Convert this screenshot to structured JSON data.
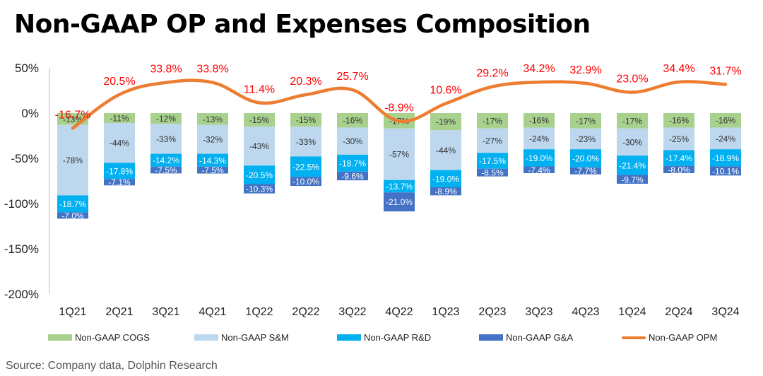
{
  "title": "Non-GAAP OP and Expenses Composition",
  "source": "Source: Company data, Dolphin Research",
  "chart_data": {
    "type": "bar",
    "stacked": true,
    "categories": [
      "1Q21",
      "2Q21",
      "3Q21",
      "4Q21",
      "1Q22",
      "2Q22",
      "3Q22",
      "4Q22",
      "1Q23",
      "2Q23",
      "3Q23",
      "4Q23",
      "1Q24",
      "2Q24",
      "3Q24"
    ],
    "ylim": [
      -200,
      50
    ],
    "yticks": [
      50,
      0,
      -50,
      -100,
      -150,
      -200
    ],
    "ytick_labels": [
      "50%",
      "0%",
      "-50%",
      "-100%",
      "-150%",
      "-200%"
    ],
    "series": [
      {
        "name": "Non-GAAP COGS",
        "color": "#a9d18e",
        "values": [
          -13,
          -11,
          -12,
          -13,
          -15,
          -15,
          -16,
          -17,
          -19,
          -17,
          -16,
          -17,
          -17,
          -16,
          -16
        ],
        "labels": [
          "-13%",
          "-11%",
          "-12%",
          "-13%",
          "-15%",
          "-15%",
          "-16%",
          "-17%",
          "-19%",
          "-17%",
          "-16%",
          "-17%",
          "-17%",
          "-16%",
          "-16%"
        ]
      },
      {
        "name": "Non-GAAP S&M",
        "color": "#bdd7ee",
        "values": [
          -78,
          -44,
          -33,
          -32,
          -43,
          -33,
          -30,
          -57,
          -44,
          -27,
          -24,
          -23,
          -30,
          -25,
          -24
        ],
        "labels": [
          "-78%",
          "-44%",
          "-33%",
          "-32%",
          "-43%",
          "-33%",
          "-30%",
          "-57%",
          "-44%",
          "-27%",
          "-24%",
          "-23%",
          "-30%",
          "-25%",
          "-24%"
        ]
      },
      {
        "name": "Non-GAAP R&D",
        "color": "#00b0f0",
        "values": [
          -18.7,
          -17.8,
          -14.2,
          -14.3,
          -20.5,
          -22.5,
          -18.7,
          -13.7,
          -19.0,
          -17.5,
          -19.0,
          -20.0,
          -21.4,
          -17.4,
          -18.9
        ],
        "labels": [
          "-18.7%",
          "-17.8%",
          "-14.2%",
          "-14.3%",
          "-20.5%",
          "-22.5%",
          "-18.7%",
          "-13.7%",
          "-19.0%",
          "-17.5%",
          "-19.0%",
          "-20.0%",
          "-21.4%",
          "-17.4%",
          "-18.9%"
        ]
      },
      {
        "name": "Non-GAAP G&A",
        "color": "#4472c4",
        "values": [
          -7.0,
          -7.1,
          -7.5,
          -7.5,
          -10.3,
          -10.0,
          -9.6,
          -21.0,
          -8.9,
          -8.5,
          -7.4,
          -7.7,
          -9.7,
          -8.0,
          -10.1
        ],
        "labels": [
          "-7.0%",
          "-7.1%",
          "-7.5%",
          "-7.5%",
          "-10.3%",
          "-10.0%",
          "-9.6%",
          "-21.0%",
          "-8.9%",
          "-8.5%",
          "-7.4%",
          "-7.7%",
          "-9.7%",
          "-8.0%",
          "-10.1%"
        ]
      }
    ],
    "line": {
      "name": "Non-GAAP OPM",
      "color": "#ed7d31",
      "values": [
        -16.7,
        20.5,
        33.8,
        33.8,
        11.4,
        20.3,
        25.7,
        -8.9,
        10.6,
        29.2,
        34.2,
        32.9,
        23.0,
        34.4,
        31.7
      ],
      "labels": [
        "-16.7%",
        "20.5%",
        "33.8%",
        "33.8%",
        "11.4%",
        "20.3%",
        "25.7%",
        "-8.9%",
        "10.6%",
        "29.2%",
        "34.2%",
        "32.9%",
        "23.0%",
        "34.4%",
        "31.7%"
      ],
      "label_color": "#ff0000"
    },
    "legend_position": "bottom",
    "grid": false
  }
}
